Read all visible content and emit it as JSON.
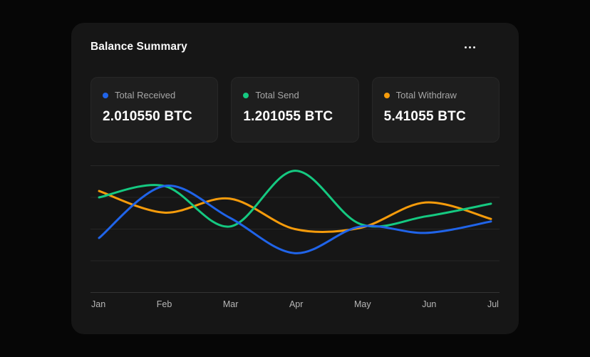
{
  "card": {
    "title": "Balance Summary",
    "menu_icon": "ellipsis-horizontal"
  },
  "stats": [
    {
      "label": "Total Received",
      "value": "2.010550 BTC",
      "color": "#2064e9"
    },
    {
      "label": "Total Send",
      "value": "1.201055 BTC",
      "color": "#15c981"
    },
    {
      "label": "Total Withdraw",
      "value": "5.41055 BTC",
      "color": "#f59b0b"
    }
  ],
  "chart_data": {
    "type": "line",
    "x": [
      "Jan",
      "Feb",
      "Mar",
      "Apr",
      "May",
      "Jun",
      "Jul"
    ],
    "series": [
      {
        "name": "Total Withdraw",
        "color": "#f59b0b",
        "values": [
          80,
          63,
          74,
          50,
          51,
          71,
          58
        ]
      },
      {
        "name": "Total Send",
        "color": "#15c981",
        "values": [
          75,
          84,
          52,
          96,
          54,
          60,
          70
        ]
      },
      {
        "name": "Total Received",
        "color": "#2064e9",
        "values": [
          43,
          84,
          59,
          31,
          52,
          47,
          56
        ]
      }
    ],
    "ylim": [
      0,
      100
    ],
    "y_axis_labels_visible": false,
    "grid": "horizontal",
    "gridline_count": 5,
    "grid_color": "rgba(255,255,255,0.07)",
    "baseline_color": "rgba(255,255,255,0.13)",
    "smooth": true,
    "line_width": 3,
    "legend_position": "stat-cards-above"
  }
}
